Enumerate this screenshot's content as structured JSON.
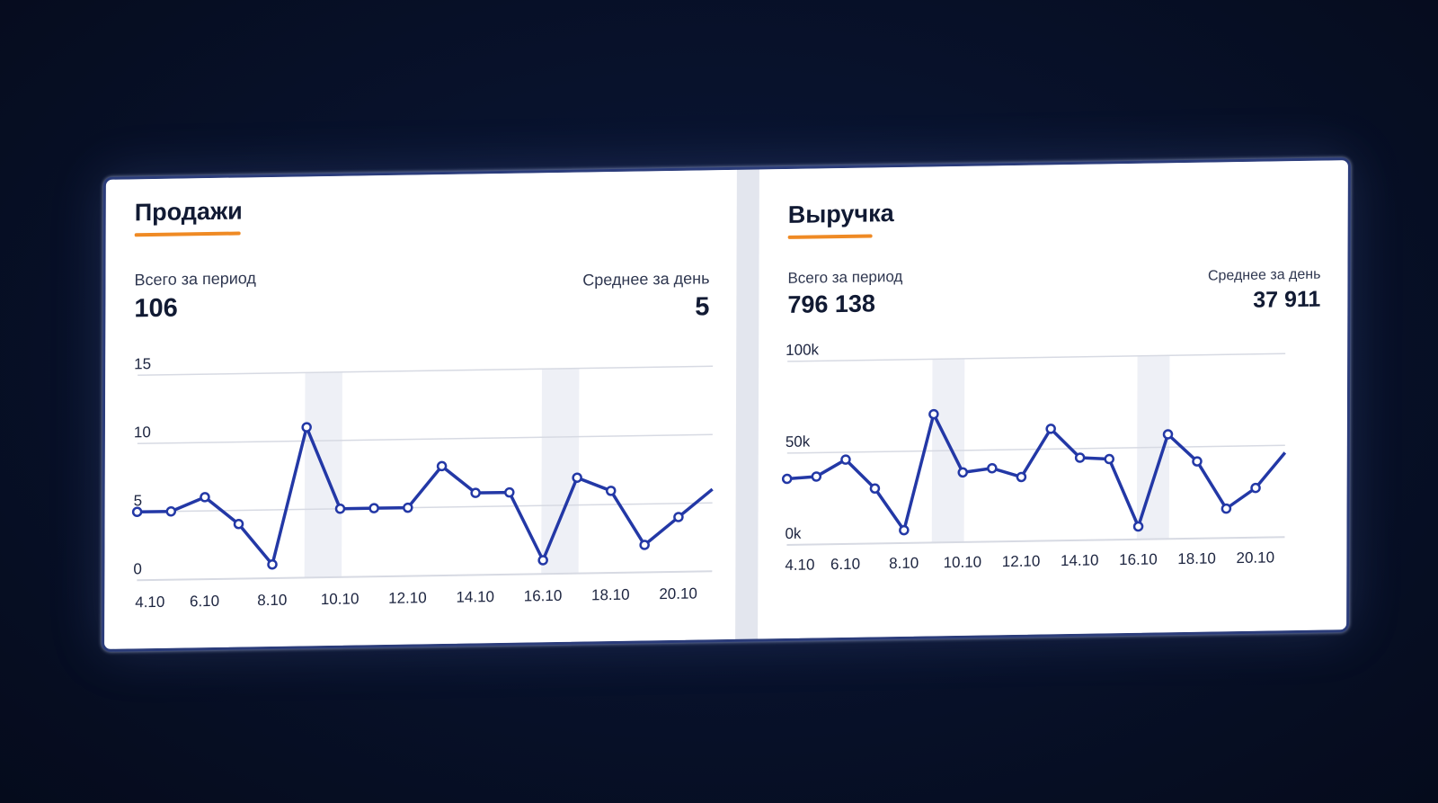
{
  "panels": [
    {
      "title": "Продажи",
      "total_label": "Всего за период",
      "total_value": "106",
      "avg_label": "Среднее за день",
      "avg_value": "5"
    },
    {
      "title": "Выручка",
      "total_label": "Всего за период",
      "total_value": "796 138",
      "avg_label": "Среднее за день",
      "avg_value": "37 911"
    }
  ],
  "colors": {
    "line": "#2338a6",
    "accent_underline": "#ef8a24",
    "weekend_band": "#eef0f6",
    "grid": "#d7dae3"
  },
  "chart_data": [
    {
      "type": "line",
      "title": "Продажи",
      "x": [
        "4.10",
        "5.10",
        "6.10",
        "7.10",
        "8.10",
        "9.10",
        "10.10",
        "11.10",
        "12.10",
        "13.10",
        "14.10",
        "15.10",
        "16.10",
        "17.10",
        "18.10",
        "19.10",
        "20.10",
        "21.10"
      ],
      "xtick_labels": [
        "4.10",
        "6.10",
        "8.10",
        "10.10",
        "12.10",
        "14.10",
        "16.10",
        "18.10",
        "20.10"
      ],
      "series": [
        {
          "values": [
            5,
            5,
            6,
            4,
            1,
            11,
            5,
            5,
            5,
            8,
            6,
            6,
            1,
            7,
            6,
            2,
            4,
            6
          ]
        }
      ],
      "ylim": [
        0,
        15
      ],
      "yticks": [
        "0",
        "5",
        "10",
        "15"
      ],
      "shaded_ranges": [
        [
          "9.10",
          "10.10"
        ],
        [
          "16.10",
          "17.10"
        ]
      ],
      "grid": true
    },
    {
      "type": "line",
      "title": "Выручка",
      "x": [
        "4.10",
        "5.10",
        "6.10",
        "7.10",
        "8.10",
        "9.10",
        "10.10",
        "11.10",
        "12.10",
        "13.10",
        "14.10",
        "15.10",
        "16.10",
        "17.10",
        "18.10",
        "19.10",
        "20.10",
        "21.10"
      ],
      "xtick_labels": [
        "4.10",
        "6.10",
        "8.10",
        "10.10",
        "12.10",
        "14.10",
        "16.10",
        "18.10",
        "20.10"
      ],
      "series": [
        {
          "values": [
            36000,
            37000,
            46000,
            30000,
            7000,
            70000,
            38000,
            40000,
            35000,
            61000,
            45000,
            44000,
            7000,
            57000,
            42000,
            16000,
            27000,
            46000
          ]
        }
      ],
      "ylim": [
        0,
        100000
      ],
      "yticks": [
        "0k",
        "50k",
        "100k"
      ],
      "shaded_ranges": [
        [
          "9.10",
          "10.10"
        ],
        [
          "16.10",
          "17.10"
        ]
      ],
      "grid": true
    }
  ]
}
